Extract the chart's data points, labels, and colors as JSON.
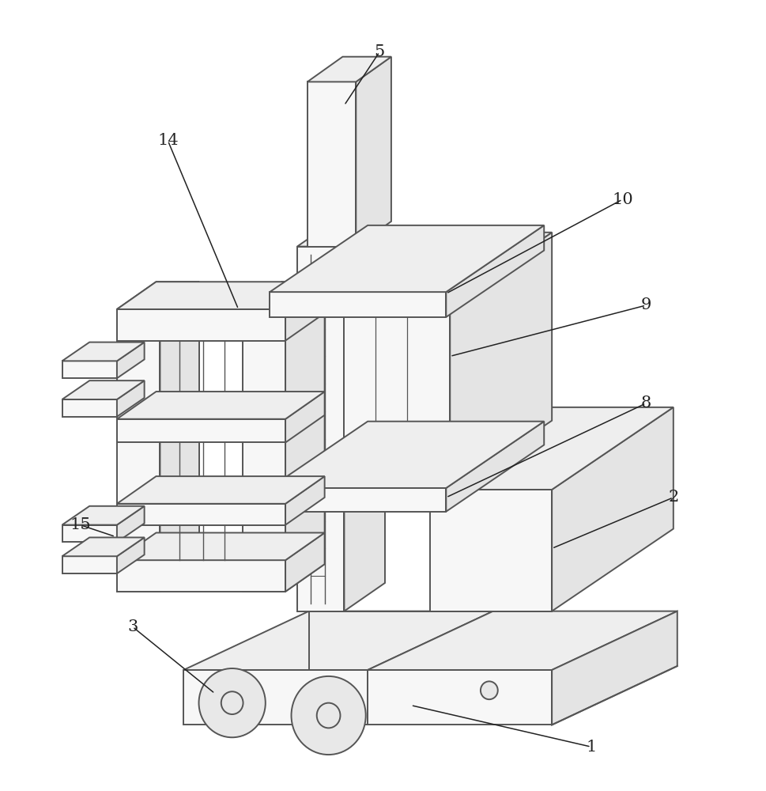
{
  "background_color": "#ffffff",
  "line_color": "#555555",
  "line_width": 1.4,
  "figsize": [
    9.7,
    10.0
  ],
  "dpi": 100,
  "annotation_fontsize": 15,
  "annotation_color": "#222222",
  "face_light": "#f7f7f7",
  "face_mid": "#eeeeee",
  "face_dark": "#e4e4e4"
}
